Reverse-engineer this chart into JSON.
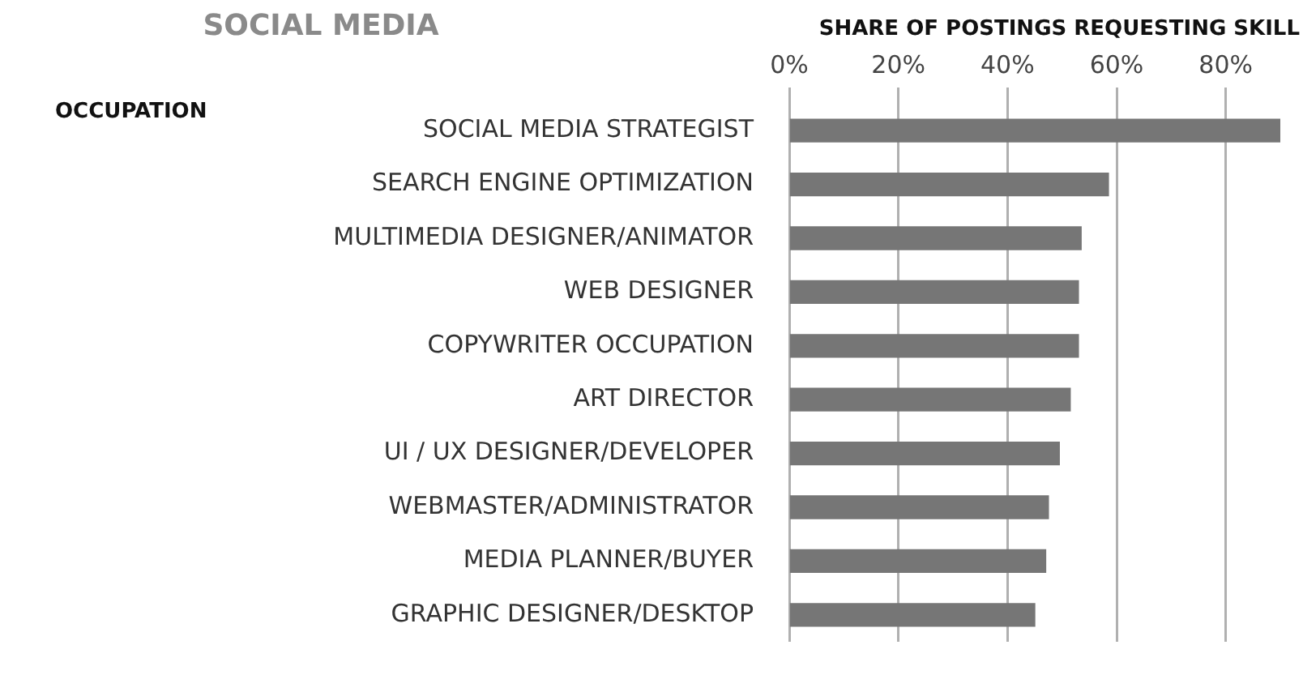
{
  "chart_data": {
    "type": "bar",
    "orientation": "horizontal",
    "title": "SOCIAL MEDIA",
    "xlabel": "SHARE OF POSTINGS REQUESTING SKILL",
    "annotations": [
      "OCCUPATION"
    ],
    "categories": [
      "SOCIAL MEDIA STRATEGIST",
      "SEARCH ENGINE OPTIMIZATION",
      "MULTIMEDIA DESIGNER/ANIMATOR",
      "WEB DESIGNER",
      "COPYWRITER OCCUPATION",
      "ART DIRECTOR",
      "UI / UX DESIGNER/DEVELOPER",
      "WEBMASTER/ADMINISTRATOR",
      "MEDIA PLANNER/BUYER",
      "GRAPHIC DESIGNER/DESKTOP"
    ],
    "values": [
      90,
      58.5,
      53.5,
      53,
      53,
      51.5,
      49.5,
      47.5,
      47,
      45
    ],
    "color": "#767676",
    "xlim": [
      0,
      90
    ],
    "xticks": [
      {
        "value": 0,
        "label": "0%"
      },
      {
        "value": 20,
        "label": "20%"
      },
      {
        "value": 40,
        "label": "40%"
      },
      {
        "value": 60,
        "label": "60%"
      },
      {
        "value": 80,
        "label": "80%"
      }
    ],
    "grid": "x",
    "legend": false
  }
}
